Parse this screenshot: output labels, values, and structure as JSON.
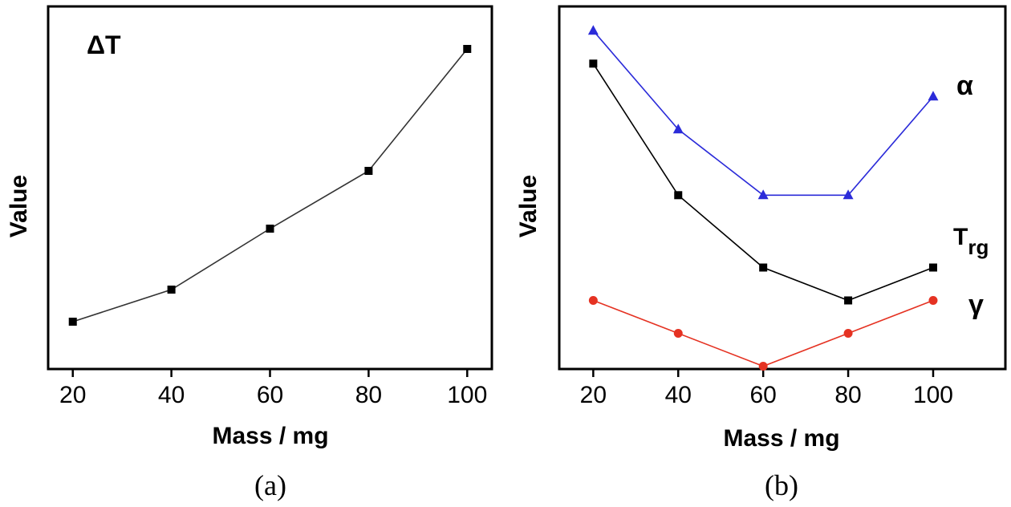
{
  "chart_data": [
    {
      "type": "line",
      "caption": "(a)",
      "xlabel": "Mass / mg",
      "ylabel": "Value",
      "x": [
        20,
        40,
        60,
        80,
        100
      ],
      "xticks": [
        "20",
        "40",
        "60",
        "80",
        "100"
      ],
      "xlim": [
        15,
        105
      ],
      "ylim": [
        0,
        1
      ],
      "grid": false,
      "series": [
        {
          "name": "ΔT",
          "label": "ΔT",
          "color": "#333333",
          "marker": "square",
          "values": [
            0.14,
            0.24,
            0.43,
            0.61,
            0.99
          ]
        }
      ]
    },
    {
      "type": "line",
      "caption": "(b)",
      "xlabel": "Mass / mg",
      "ylabel": "Value",
      "x": [
        20,
        40,
        60,
        80,
        100
      ],
      "xticks": [
        "20",
        "40",
        "60",
        "80",
        "100"
      ],
      "xlim": [
        12,
        117
      ],
      "ylim": [
        0,
        1
      ],
      "grid": false,
      "series": [
        {
          "name": "α",
          "label": "α",
          "color": "#2b2bd9",
          "marker": "triangle",
          "values": [
            1.07,
            0.77,
            0.57,
            0.57,
            0.87
          ]
        },
        {
          "name": "Trg",
          "label_main": "T",
          "label_sub": "rg",
          "color": "#000000",
          "marker": "square",
          "values": [
            0.97,
            0.57,
            0.35,
            0.25,
            0.35
          ]
        },
        {
          "name": "γ",
          "label": "γ",
          "color": "#e53222",
          "marker": "circle",
          "values": [
            0.25,
            0.15,
            0.05,
            0.15,
            0.25
          ]
        }
      ]
    }
  ]
}
